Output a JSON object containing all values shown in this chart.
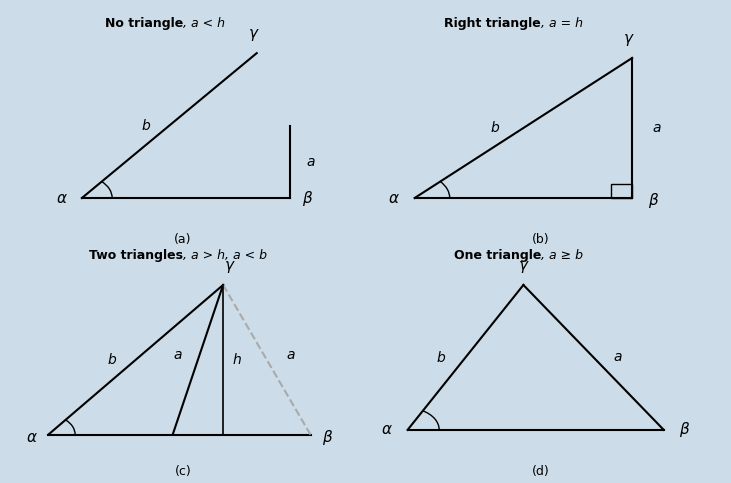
{
  "bg_color": "#ccdce8",
  "line_color": "#000000",
  "dashed_color": "#aaaaaa",
  "panels": [
    {
      "title_bold": "No triangle",
      "title_italic": ", a < h",
      "label": "(a)"
    },
    {
      "title_bold": "Right triangle",
      "title_italic": ", a = h",
      "label": "(b)"
    },
    {
      "title_bold": "Two triangles",
      "title_italic": ", a > h, a < b",
      "label": "(c)"
    },
    {
      "title_bold": "One triangle",
      "title_italic": ", a ≥ b",
      "label": "(d)"
    }
  ]
}
